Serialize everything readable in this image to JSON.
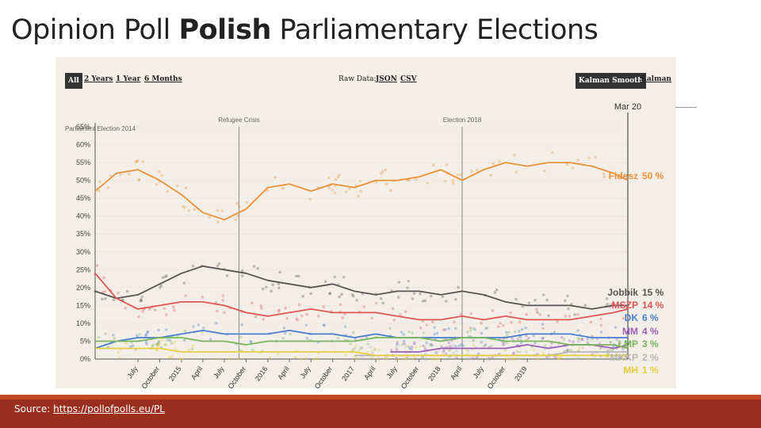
{
  "title": {
    "plain": "Opinion Poll ",
    "bold": "Polish",
    "rest": " Parliamentary Elections"
  },
  "toolbar": {
    "ranges": [
      "All",
      "2 Years",
      "1 Year",
      "6 Months"
    ],
    "active_range": "All",
    "raw_data_label": "Raw Data:",
    "raw_formats": [
      "JSON",
      "CSV"
    ],
    "smoothing": [
      "Kalman Smooth",
      "Kalman"
    ],
    "active_smoothing": "Kalman Smooth"
  },
  "footer": {
    "source_label": "Source:",
    "source_url": "https://pollofpolls.eu/PL"
  },
  "chart_data": {
    "type": "line",
    "y_ticks": [
      "0%",
      "5%",
      "10%",
      "15%",
      "20%",
      "25%",
      "30%",
      "35%",
      "40%",
      "45%",
      "50%",
      "55%",
      "60%",
      "65%"
    ],
    "ylim": [
      0,
      65
    ],
    "x_ticks": [
      "July",
      "October",
      "2015",
      "April",
      "July",
      "October",
      "2016",
      "April",
      "July",
      "October",
      "2017",
      "April",
      "July",
      "October",
      "2018",
      "April",
      "July",
      "October",
      "2019"
    ],
    "annotations": [
      {
        "label": "Parliament Election 2014",
        "at": "2014-04"
      },
      {
        "label": "Refugee Crisis",
        "at": "2015-09"
      },
      {
        "label": "Election 2018",
        "at": "2018-04"
      },
      {
        "label": "Mar 20",
        "at": "2020-03"
      }
    ],
    "grid": true,
    "series": [
      {
        "name": "Fidesz",
        "value_label": "50 %",
        "color": "#e8923a",
        "x": [
          "2014-01",
          "2014-04",
          "2014-07",
          "2014-10",
          "2015-01",
          "2015-04",
          "2015-07",
          "2015-10",
          "2016-01",
          "2016-04",
          "2016-07",
          "2016-10",
          "2017-01",
          "2017-04",
          "2017-07",
          "2017-10",
          "2018-01",
          "2018-04",
          "2018-07",
          "2018-10",
          "2019-01",
          "2019-04",
          "2019-07",
          "2019-10",
          "2020-01",
          "2020-03"
        ],
        "y": [
          47,
          52,
          53,
          50,
          46,
          41,
          39,
          42,
          48,
          49,
          47,
          49,
          48,
          50,
          50,
          51,
          53,
          50,
          53,
          55,
          54,
          55,
          55,
          54,
          52,
          50
        ]
      },
      {
        "name": "Jobbik",
        "value_label": "15 %",
        "color": "#555555",
        "x": [
          "2014-01",
          "2014-04",
          "2014-07",
          "2014-10",
          "2015-01",
          "2015-04",
          "2015-07",
          "2015-10",
          "2016-01",
          "2016-04",
          "2016-07",
          "2016-10",
          "2017-01",
          "2017-04",
          "2017-07",
          "2017-10",
          "2018-01",
          "2018-04",
          "2018-07",
          "2018-10",
          "2019-01",
          "2019-04",
          "2019-07",
          "2019-10",
          "2020-01",
          "2020-03"
        ],
        "y": [
          19,
          17,
          18,
          21,
          24,
          26,
          25,
          24,
          22,
          21,
          20,
          21,
          19,
          18,
          19,
          19,
          18,
          19,
          18,
          16,
          15,
          15,
          15,
          14,
          15,
          15
        ]
      },
      {
        "name": "MSZP",
        "value_label": "14 %",
        "color": "#e05555",
        "x": [
          "2014-01",
          "2014-04",
          "2014-07",
          "2014-10",
          "2015-01",
          "2015-04",
          "2015-07",
          "2015-10",
          "2016-01",
          "2016-04",
          "2016-07",
          "2016-10",
          "2017-01",
          "2017-04",
          "2017-07",
          "2017-10",
          "2018-01",
          "2018-04",
          "2018-07",
          "2018-10",
          "2019-01",
          "2019-04",
          "2019-07",
          "2019-10",
          "2020-01",
          "2020-03"
        ],
        "y": [
          24,
          17,
          14,
          15,
          16,
          16,
          15,
          13,
          12,
          13,
          14,
          13,
          13,
          13,
          12,
          11,
          11,
          12,
          11,
          12,
          11,
          11,
          11,
          12,
          13,
          14
        ]
      },
      {
        "name": "DK",
        "value_label": "6 %",
        "color": "#4a7fcc",
        "x": [
          "2014-01",
          "2014-04",
          "2014-07",
          "2014-10",
          "2015-01",
          "2015-04",
          "2015-07",
          "2015-10",
          "2016-01",
          "2016-04",
          "2016-07",
          "2016-10",
          "2017-01",
          "2017-04",
          "2017-07",
          "2017-10",
          "2018-01",
          "2018-04",
          "2018-07",
          "2018-10",
          "2019-01",
          "2019-04",
          "2019-07",
          "2019-10",
          "2020-01",
          "2020-03"
        ],
        "y": [
          3,
          5,
          6,
          6,
          7,
          8,
          7,
          7,
          7,
          8,
          7,
          7,
          6,
          7,
          6,
          6,
          6,
          6,
          6,
          6,
          7,
          7,
          7,
          6,
          6,
          6
        ]
      },
      {
        "name": "MM",
        "value_label": "4 %",
        "color": "#9a60b8",
        "x": [
          "2017-06",
          "2017-10",
          "2018-01",
          "2018-04",
          "2018-07",
          "2018-10",
          "2019-01",
          "2019-04",
          "2019-07",
          "2019-10",
          "2020-01",
          "2020-03"
        ],
        "y": [
          2,
          2,
          3,
          3,
          3,
          3,
          4,
          3,
          4,
          4,
          3,
          4
        ]
      },
      {
        "name": "LMP",
        "value_label": "3 %",
        "color": "#7ab55c",
        "x": [
          "2014-01",
          "2014-04",
          "2014-07",
          "2014-10",
          "2015-01",
          "2015-04",
          "2015-07",
          "2015-10",
          "2016-01",
          "2016-04",
          "2016-07",
          "2016-10",
          "2017-01",
          "2017-04",
          "2017-07",
          "2017-10",
          "2018-01",
          "2018-04",
          "2018-07",
          "2018-10",
          "2019-01",
          "2019-04",
          "2019-07",
          "2019-10",
          "2020-01",
          "2020-03"
        ],
        "y": [
          5,
          5,
          5,
          6,
          6,
          5,
          5,
          4,
          5,
          5,
          5,
          5,
          5,
          6,
          6,
          6,
          5,
          6,
          6,
          5,
          5,
          5,
          4,
          4,
          4,
          3
        ]
      },
      {
        "name": "MKKP",
        "value_label": "2 %",
        "color": "#b5b5b5",
        "x": [
          "2017-01",
          "2017-06",
          "2017-10",
          "2018-01",
          "2018-04",
          "2018-07",
          "2018-10",
          "2019-01",
          "2019-04",
          "2019-07",
          "2019-10",
          "2020-01",
          "2020-03"
        ],
        "y": [
          1,
          1,
          1,
          1,
          1,
          1,
          1,
          1,
          1,
          2,
          2,
          2,
          2
        ]
      },
      {
        "name": "MH",
        "value_label": "1 %",
        "color": "#e6cf3f",
        "x": [
          "2014-01",
          "2014-04",
          "2014-07",
          "2014-10",
          "2015-01",
          "2015-04",
          "2015-07",
          "2015-10",
          "2016-01",
          "2016-04",
          "2016-07",
          "2016-10",
          "2017-01",
          "2017-04",
          "2017-07",
          "2017-10",
          "2018-01",
          "2018-04",
          "2018-07",
          "2018-10",
          "2019-01",
          "2019-04",
          "2019-07",
          "2019-10",
          "2020-01",
          "2020-03"
        ],
        "y": [
          3,
          3,
          3,
          3,
          2,
          2,
          2,
          2,
          2,
          2,
          2,
          2,
          2,
          1,
          1,
          1,
          1,
          1,
          1,
          1,
          1,
          1,
          1,
          1,
          1,
          1
        ]
      }
    ]
  }
}
